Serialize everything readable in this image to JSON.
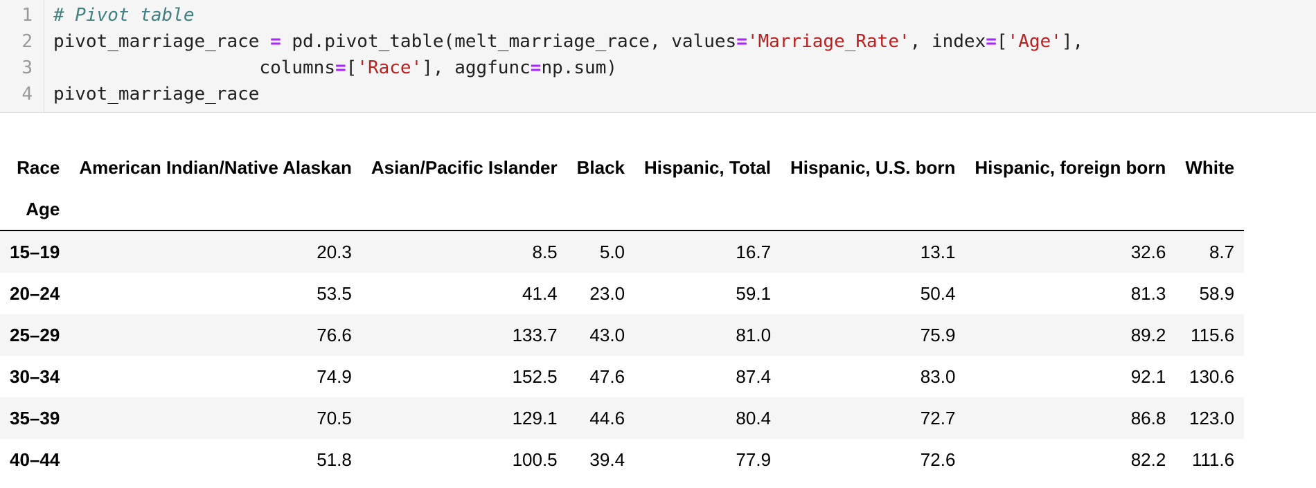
{
  "code": {
    "line_numbers": [
      "1",
      "2",
      "3",
      "4"
    ],
    "line1": {
      "comment": "# Pivot table"
    },
    "line2": {
      "var": "pivot_marriage_race ",
      "eq": "=",
      "call": " pd.pivot_table(melt_marriage_race, values",
      "eq2": "=",
      "str1": "'Marriage_Rate'",
      "mid": ", index",
      "eq3": "=",
      "open": "[",
      "str2": "'Age'",
      "close": "],"
    },
    "line3": {
      "indent": "                   columns",
      "eq": "=",
      "open": "[",
      "str": "'Race'",
      "mid": "], aggfunc",
      "eq2": "=",
      "rest": "np.sum)"
    },
    "line4": {
      "text": "pivot_marriage_race"
    }
  },
  "table": {
    "columns_label": "Race",
    "index_label": "Age",
    "columns": [
      "American Indian/Native Alaskan",
      "Asian/Pacific Islander",
      "Black",
      "Hispanic, Total",
      "Hispanic, U.S. born",
      "Hispanic, foreign born",
      "White"
    ],
    "rows": [
      {
        "age": "15–19",
        "values": [
          "20.3",
          "8.5",
          "5.0",
          "16.7",
          "13.1",
          "32.6",
          "8.7"
        ]
      },
      {
        "age": "20–24",
        "values": [
          "53.5",
          "41.4",
          "23.0",
          "59.1",
          "50.4",
          "81.3",
          "58.9"
        ]
      },
      {
        "age": "25–29",
        "values": [
          "76.6",
          "133.7",
          "43.0",
          "81.0",
          "75.9",
          "89.2",
          "115.6"
        ]
      },
      {
        "age": "30–34",
        "values": [
          "74.9",
          "152.5",
          "47.6",
          "87.4",
          "83.0",
          "92.1",
          "130.6"
        ]
      },
      {
        "age": "35–39",
        "values": [
          "70.5",
          "129.1",
          "44.6",
          "80.4",
          "72.7",
          "86.8",
          "123.0"
        ]
      },
      {
        "age": "40–44",
        "values": [
          "51.8",
          "100.5",
          "39.4",
          "77.9",
          "72.6",
          "82.2",
          "111.6"
        ]
      }
    ]
  }
}
